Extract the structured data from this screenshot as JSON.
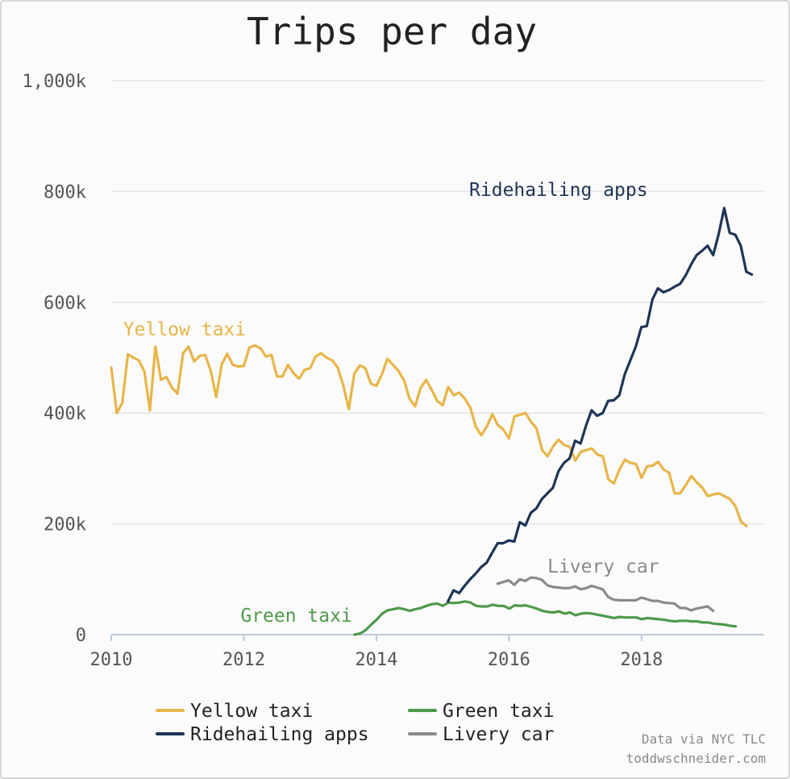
{
  "chart_data": {
    "type": "line",
    "title": "Trips per day",
    "xlabel": "",
    "ylabel": "",
    "xlim": [
      2010.0,
      2019.85
    ],
    "ylim": [
      0,
      1000000
    ],
    "x_ticks": [
      {
        "value": 2010,
        "label": "2010"
      },
      {
        "value": 2012,
        "label": "2012"
      },
      {
        "value": 2014,
        "label": "2014"
      },
      {
        "value": 2016,
        "label": "2016"
      },
      {
        "value": 2018,
        "label": "2018"
      }
    ],
    "y_ticks": [
      {
        "value": 0,
        "label": "0"
      },
      {
        "value": 200000,
        "label": "200k"
      },
      {
        "value": 400000,
        "label": "400k"
      },
      {
        "value": 600000,
        "label": "600k"
      },
      {
        "value": 800000,
        "label": "800k"
      },
      {
        "value": 1000000,
        "label": "1,000k"
      }
    ],
    "grid": "horizontal",
    "legend_position": "bottom",
    "series": [
      {
        "name": "Yellow taxi",
        "key": "yellow",
        "color": "#e8b548",
        "inline_label": "Yellow taxi",
        "label_at": [
          2010.18,
          540000
        ],
        "start": 2010.0,
        "step": 0.08333,
        "values": [
          482000,
          400000,
          418000,
          506000,
          500000,
          495000,
          475000,
          405000,
          520000,
          460000,
          465000,
          446000,
          435000,
          508000,
          520000,
          493000,
          503000,
          505000,
          477000,
          429000,
          488000,
          507000,
          487000,
          484000,
          485000,
          518000,
          522000,
          517000,
          502000,
          505000,
          466000,
          466000,
          487000,
          472000,
          462000,
          478000,
          481000,
          502000,
          508000,
          500000,
          495000,
          482000,
          450000,
          407000,
          471000,
          486000,
          481000,
          453000,
          449000,
          470000,
          498000,
          487000,
          476000,
          459000,
          426000,
          412000,
          445000,
          460000,
          442000,
          422000,
          414000,
          447000,
          432000,
          437000,
          426000,
          410000,
          375000,
          360000,
          376000,
          398000,
          378000,
          370000,
          354000,
          394000,
          397000,
          400000,
          384000,
          372000,
          333000,
          322000,
          340000,
          352000,
          342000,
          339000,
          314000,
          330000,
          333000,
          336000,
          325000,
          322000,
          280000,
          273000,
          298000,
          316000,
          310000,
          308000,
          283000,
          304000,
          305000,
          312000,
          298000,
          292000,
          255000,
          255000,
          270000,
          286000,
          275000,
          265000,
          250000,
          253000,
          255000,
          250000,
          245000,
          232000,
          204000,
          196000
        ]
      },
      {
        "name": "Ridehailing apps",
        "key": "ridehailing",
        "color": "#1e3556",
        "inline_label": "Ridehailing apps",
        "label_at": [
          2015.4,
          792000
        ],
        "start": 2015.08,
        "step": 0.08333,
        "values": [
          60000,
          80000,
          75000,
          88000,
          100000,
          110000,
          122000,
          130000,
          148000,
          165000,
          165000,
          170000,
          168000,
          203000,
          197000,
          220000,
          228000,
          245000,
          255000,
          265000,
          295000,
          310000,
          318000,
          350000,
          345000,
          378000,
          405000,
          395000,
          400000,
          422000,
          423000,
          432000,
          470000,
          495000,
          520000,
          555000,
          557000,
          605000,
          625000,
          618000,
          622000,
          628000,
          633000,
          648000,
          668000,
          685000,
          693000,
          702000,
          685000,
          723000,
          770000,
          725000,
          722000,
          702000,
          655000,
          650000
        ]
      },
      {
        "name": "Green taxi",
        "key": "green",
        "color": "#4e9a4b",
        "inline_label": "Green taxi",
        "label_at": [
          2011.95,
          23000
        ],
        "start": 2013.67,
        "step": 0.08333,
        "values": [
          0,
          2000,
          8000,
          18000,
          27000,
          38000,
          44000,
          46000,
          48000,
          46000,
          43000,
          46000,
          48000,
          52000,
          55000,
          56000,
          52000,
          58000,
          57000,
          58000,
          60000,
          58000,
          52000,
          51000,
          51000,
          54000,
          52000,
          52000,
          47000,
          53000,
          52000,
          53000,
          50000,
          47000,
          43000,
          41000,
          40000,
          42000,
          38000,
          40000,
          35000,
          38000,
          39000,
          38000,
          36000,
          34000,
          32000,
          30000,
          32000,
          31000,
          31000,
          31000,
          28000,
          30000,
          29000,
          28000,
          27000,
          25000,
          24000,
          25000,
          25000,
          24000,
          24000,
          22000,
          22000,
          20000,
          19000,
          18000,
          16000,
          15000
        ]
      },
      {
        "name": "Livery car",
        "key": "livery",
        "color": "#8a8a8a",
        "inline_label": "Livery car",
        "label_at": [
          2016.58,
          112000
        ],
        "start": 2015.83,
        "step": 0.08333,
        "values": [
          92000,
          95000,
          98000,
          90000,
          100000,
          97000,
          103000,
          102000,
          99000,
          89000,
          86000,
          85000,
          84000,
          84000,
          87000,
          82000,
          84000,
          88000,
          85000,
          82000,
          68000,
          63000,
          62000,
          62000,
          62000,
          62000,
          67000,
          64000,
          61000,
          61000,
          58000,
          57000,
          56000,
          48000,
          48000,
          44000,
          47000,
          49000,
          51000,
          43000
        ]
      }
    ]
  },
  "legend": {
    "items": [
      {
        "label": "Yellow taxi",
        "key": "yellow"
      },
      {
        "label": "Green taxi",
        "key": "green"
      },
      {
        "label": "Ridehailing apps",
        "key": "ridehailing"
      },
      {
        "label": "Livery car",
        "key": "livery"
      }
    ]
  },
  "footer": {
    "source": "Data via NYC TLC",
    "credit": "toddwschneider.com"
  }
}
